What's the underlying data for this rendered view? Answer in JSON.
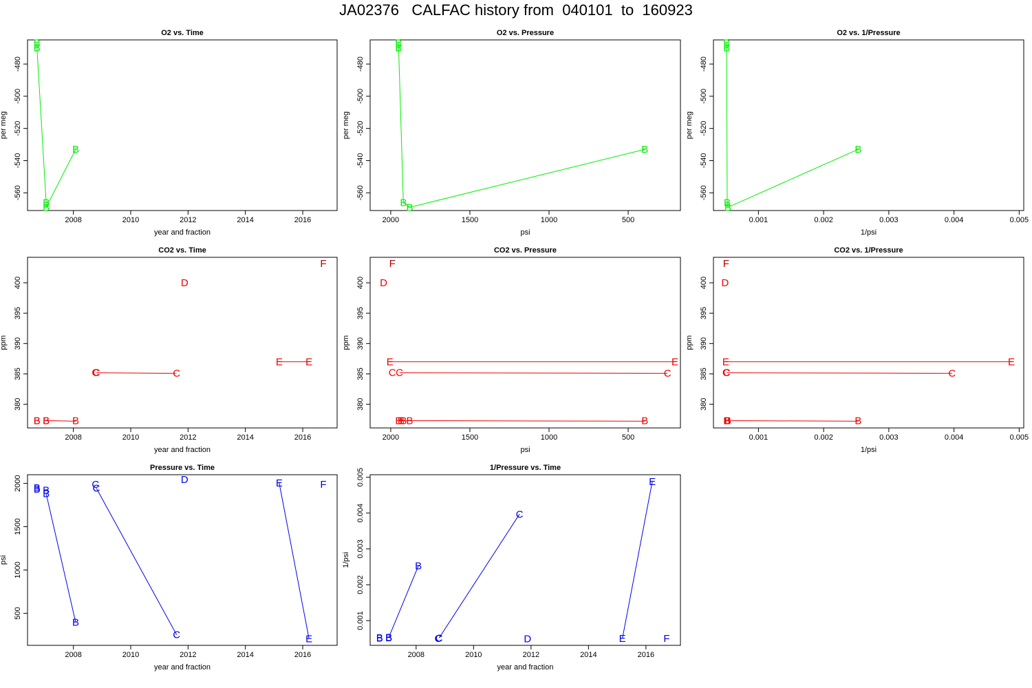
{
  "title": "JA02376   CALFAC history from  040101  to  160923",
  "colors": {
    "o2": "#00ee00",
    "co2": "#ee0000",
    "co2_dark": "#b00000",
    "pressure": "#0000ee"
  },
  "chart_data": [
    {
      "type": "line",
      "title": "O2 vs. Time",
      "xlabel": "year and fraction",
      "ylabel": "per meg",
      "color": "o2",
      "xlim": [
        2006.4,
        2017.2
      ],
      "ylim": [
        -571,
        -465
      ],
      "xticks": [
        2008,
        2010,
        2012,
        2014,
        2016
      ],
      "xtick_labels": [
        "2008",
        "2010",
        "2012",
        "2014",
        "2016"
      ],
      "yticks": [
        -560,
        -540,
        -520,
        -500,
        -480
      ],
      "ytick_labels": [
        "-560",
        "-540",
        "-520",
        "-500",
        "-480"
      ],
      "points": [
        {
          "x": 2006.73,
          "y": -467,
          "label": "B"
        },
        {
          "x": 2006.73,
          "y": -470,
          "label": "B"
        },
        {
          "x": 2007.05,
          "y": -566,
          "label": "B"
        },
        {
          "x": 2007.05,
          "y": -569,
          "label": "B"
        },
        {
          "x": 2008.08,
          "y": -533,
          "label": "B"
        }
      ],
      "lines": [
        [
          [
            2006.73,
            -467
          ],
          [
            2006.73,
            -470
          ],
          [
            2007.05,
            -566
          ],
          [
            2007.05,
            -569
          ],
          [
            2008.08,
            -533
          ]
        ]
      ]
    },
    {
      "type": "line",
      "title": "O2 vs. Pressure",
      "xlabel": "psi",
      "ylabel": "per meg",
      "color": "o2",
      "xlim": [
        2130,
        170
      ],
      "ylim": [
        -571,
        -465
      ],
      "xticks": [
        2000,
        1500,
        1000,
        500
      ],
      "xtick_labels": [
        "2000",
        "1500",
        "1000",
        "500"
      ],
      "yticks": [
        -560,
        -540,
        -520,
        -500,
        -480
      ],
      "ytick_labels": [
        "-560",
        "-540",
        "-520",
        "-500",
        "-480"
      ],
      "points": [
        {
          "x": 1950,
          "y": -467,
          "label": "B"
        },
        {
          "x": 1950,
          "y": -470,
          "label": "B"
        },
        {
          "x": 1920,
          "y": -566,
          "label": "B"
        },
        {
          "x": 1880,
          "y": -569,
          "label": "B"
        },
        {
          "x": 395,
          "y": -533,
          "label": "B"
        }
      ],
      "lines": [
        [
          [
            1950,
            -467
          ],
          [
            1950,
            -470
          ],
          [
            1920,
            -566
          ],
          [
            1880,
            -569
          ],
          [
            395,
            -533
          ]
        ]
      ]
    },
    {
      "type": "line",
      "title": "O2 vs. 1/Pressure",
      "xlabel": "1/psi",
      "ylabel": "per meg",
      "color": "o2",
      "xlim": [
        0.00031,
        0.00507
      ],
      "ylim": [
        -571,
        -465
      ],
      "xticks": [
        0.001,
        0.002,
        0.003,
        0.004,
        0.005
      ],
      "xtick_labels": [
        "0.001",
        "0.002",
        "0.003",
        "0.004",
        "0.005"
      ],
      "yticks": [
        -560,
        -540,
        -520,
        -500,
        -480
      ],
      "ytick_labels": [
        "-560",
        "-540",
        "-520",
        "-500",
        "-480"
      ],
      "points": [
        {
          "x": 0.000513,
          "y": -467,
          "label": "B"
        },
        {
          "x": 0.000513,
          "y": -470,
          "label": "B"
        },
        {
          "x": 0.000521,
          "y": -566,
          "label": "B"
        },
        {
          "x": 0.000532,
          "y": -569,
          "label": "B"
        },
        {
          "x": 0.00253,
          "y": -533,
          "label": "B"
        }
      ],
      "lines": [
        [
          [
            0.000513,
            -467
          ],
          [
            0.000513,
            -470
          ],
          [
            0.000521,
            -566
          ],
          [
            0.000532,
            -569
          ],
          [
            0.00253,
            -533
          ]
        ]
      ]
    },
    {
      "type": "line",
      "title": "CO2 vs. Time",
      "xlabel": "year and fraction",
      "ylabel": "ppm",
      "color": "co2",
      "xlim": [
        2006.4,
        2017.2
      ],
      "ylim": [
        376.1,
        404.2
      ],
      "xticks": [
        2008,
        2010,
        2012,
        2014,
        2016
      ],
      "xtick_labels": [
        "2008",
        "2010",
        "2012",
        "2014",
        "2016"
      ],
      "yticks": [
        380,
        385,
        390,
        395,
        400
      ],
      "ytick_labels": [
        "380",
        "385",
        "390",
        "395",
        "400"
      ],
      "points": [
        {
          "x": 2006.73,
          "y": 377.3,
          "label": "B"
        },
        {
          "x": 2006.73,
          "y": 377.3,
          "label": "B"
        },
        {
          "x": 2007.05,
          "y": 377.3,
          "label": "B"
        },
        {
          "x": 2007.05,
          "y": 377.3,
          "label": "B"
        },
        {
          "x": 2008.08,
          "y": 377.3,
          "label": "B"
        },
        {
          "x": 2008.77,
          "y": 385.2,
          "label": "C"
        },
        {
          "x": 2008.8,
          "y": 385.2,
          "label": "C"
        },
        {
          "x": 2011.6,
          "y": 385.1,
          "label": "C"
        },
        {
          "x": 2011.88,
          "y": 400.0,
          "label": "D"
        },
        {
          "x": 2015.18,
          "y": 387.0,
          "label": "E"
        },
        {
          "x": 2016.22,
          "y": 387.0,
          "label": "E"
        },
        {
          "x": 2016.72,
          "y": 403.2,
          "label": "F",
          "dark": true
        }
      ],
      "lines": [
        [
          [
            2007.05,
            377.3
          ],
          [
            2008.08,
            377.2
          ]
        ],
        [
          [
            2008.8,
            385.2
          ],
          [
            2011.6,
            385.1
          ]
        ],
        [
          [
            2015.18,
            387.0
          ],
          [
            2016.22,
            387.0
          ]
        ]
      ]
    },
    {
      "type": "line",
      "title": "CO2 vs. Pressure",
      "xlabel": "psi",
      "ylabel": "ppm",
      "color": "co2",
      "xlim": [
        2130,
        170
      ],
      "ylim": [
        376.1,
        404.2
      ],
      "xticks": [
        2000,
        1500,
        1000,
        500
      ],
      "xtick_labels": [
        "2000",
        "1500",
        "1000",
        "500"
      ],
      "yticks": [
        380,
        385,
        390,
        395,
        400
      ],
      "ytick_labels": [
        "380",
        "385",
        "390",
        "395",
        "400"
      ],
      "points": [
        {
          "x": 1950,
          "y": 377.3,
          "label": "B"
        },
        {
          "x": 1935,
          "y": 377.3,
          "label": "B"
        },
        {
          "x": 1920,
          "y": 377.3,
          "label": "B"
        },
        {
          "x": 1880,
          "y": 377.3,
          "label": "B"
        },
        {
          "x": 395,
          "y": 377.3,
          "label": "B"
        },
        {
          "x": 1990,
          "y": 385.2,
          "label": "C"
        },
        {
          "x": 1945,
          "y": 385.2,
          "label": "C"
        },
        {
          "x": 252,
          "y": 385.1,
          "label": "C"
        },
        {
          "x": 2045,
          "y": 400.0,
          "label": "D"
        },
        {
          "x": 2005,
          "y": 387.0,
          "label": "E"
        },
        {
          "x": 205,
          "y": 387.0,
          "label": "E"
        },
        {
          "x": 1990,
          "y": 403.2,
          "label": "F",
          "dark": true
        }
      ],
      "lines": [
        [
          [
            1950,
            377.3
          ],
          [
            395,
            377.2
          ]
        ],
        [
          [
            1945,
            385.2
          ],
          [
            252,
            385.1
          ]
        ],
        [
          [
            2005,
            387.0
          ],
          [
            205,
            387.0
          ]
        ]
      ]
    },
    {
      "type": "line",
      "title": "CO2 vs. 1/Pressure",
      "xlabel": "1/psi",
      "ylabel": "ppm",
      "color": "co2",
      "xlim": [
        0.00031,
        0.00507
      ],
      "ylim": [
        376.1,
        404.2
      ],
      "xticks": [
        0.001,
        0.002,
        0.003,
        0.004,
        0.005
      ],
      "xtick_labels": [
        "0.001",
        "0.002",
        "0.003",
        "0.004",
        "0.005"
      ],
      "yticks": [
        380,
        385,
        390,
        395,
        400
      ],
      "ytick_labels": [
        "380",
        "385",
        "390",
        "395",
        "400"
      ],
      "points": [
        {
          "x": 0.000513,
          "y": 377.3,
          "label": "B"
        },
        {
          "x": 0.000517,
          "y": 377.3,
          "label": "B"
        },
        {
          "x": 0.000521,
          "y": 377.3,
          "label": "B"
        },
        {
          "x": 0.000532,
          "y": 377.3,
          "label": "B"
        },
        {
          "x": 0.00253,
          "y": 377.3,
          "label": "B"
        },
        {
          "x": 0.000503,
          "y": 385.2,
          "label": "C"
        },
        {
          "x": 0.000514,
          "y": 385.2,
          "label": "C"
        },
        {
          "x": 0.00397,
          "y": 385.1,
          "label": "C"
        },
        {
          "x": 0.000489,
          "y": 400.0,
          "label": "D"
        },
        {
          "x": 0.000499,
          "y": 387.0,
          "label": "E"
        },
        {
          "x": 0.00488,
          "y": 387.0,
          "label": "E"
        },
        {
          "x": 0.000503,
          "y": 403.2,
          "label": "F",
          "dark": true
        }
      ],
      "lines": [
        [
          [
            0.000513,
            377.3
          ],
          [
            0.00253,
            377.2
          ]
        ],
        [
          [
            0.000514,
            385.2
          ],
          [
            0.00397,
            385.1
          ]
        ],
        [
          [
            0.000499,
            387.0
          ],
          [
            0.00488,
            387.0
          ]
        ]
      ]
    },
    {
      "type": "line",
      "title": "Pressure vs. Time",
      "xlabel": "year and fraction",
      "ylabel": "psi",
      "color": "pressure",
      "xlim": [
        2006.4,
        2017.2
      ],
      "ylim": [
        130,
        2100
      ],
      "xticks": [
        2008,
        2010,
        2012,
        2014,
        2016
      ],
      "xtick_labels": [
        "2008",
        "2010",
        "2012",
        "2014",
        "2016"
      ],
      "yticks": [
        500,
        1000,
        1500,
        2000
      ],
      "ytick_labels": [
        "500",
        "1000",
        "1500",
        "2000"
      ],
      "points": [
        {
          "x": 2006.73,
          "y": 1950,
          "label": "B"
        },
        {
          "x": 2006.73,
          "y": 1935,
          "label": "B"
        },
        {
          "x": 2007.05,
          "y": 1920,
          "label": "B"
        },
        {
          "x": 2007.05,
          "y": 1880,
          "label": "B"
        },
        {
          "x": 2008.08,
          "y": 395,
          "label": "B"
        },
        {
          "x": 2008.77,
          "y": 1990,
          "label": "C"
        },
        {
          "x": 2008.8,
          "y": 1945,
          "label": "C"
        },
        {
          "x": 2011.6,
          "y": 252,
          "label": "C"
        },
        {
          "x": 2011.88,
          "y": 2045,
          "label": "D"
        },
        {
          "x": 2015.18,
          "y": 2005,
          "label": "E"
        },
        {
          "x": 2016.22,
          "y": 205,
          "label": "E"
        },
        {
          "x": 2016.72,
          "y": 1990,
          "label": "F"
        }
      ],
      "lines": [
        [
          [
            2007.05,
            1880
          ],
          [
            2008.08,
            395
          ]
        ],
        [
          [
            2008.8,
            1945
          ],
          [
            2011.6,
            252
          ]
        ],
        [
          [
            2015.18,
            2005
          ],
          [
            2016.22,
            205
          ]
        ]
      ]
    },
    {
      "type": "line",
      "title": "1/Pressure vs. Time",
      "xlabel": "year and fraction",
      "ylabel": "1/psi",
      "color": "pressure",
      "xlim": [
        2006.4,
        2017.2
      ],
      "ylim": [
        0.00031,
        0.00507
      ],
      "xticks": [
        2008,
        2010,
        2012,
        2014,
        2016
      ],
      "xtick_labels": [
        "2008",
        "2010",
        "2012",
        "2014",
        "2016"
      ],
      "yticks": [
        0.001,
        0.002,
        0.003,
        0.004,
        0.005
      ],
      "ytick_labels": [
        "0.001",
        "0.002",
        "0.003",
        "0.004",
        "0.005"
      ],
      "points": [
        {
          "x": 2006.73,
          "y": 0.000513,
          "label": "B"
        },
        {
          "x": 2006.73,
          "y": 0.000517,
          "label": "B"
        },
        {
          "x": 2007.05,
          "y": 0.000521,
          "label": "B"
        },
        {
          "x": 2007.05,
          "y": 0.000532,
          "label": "B"
        },
        {
          "x": 2008.08,
          "y": 0.00253,
          "label": "B"
        },
        {
          "x": 2008.77,
          "y": 0.000503,
          "label": "C"
        },
        {
          "x": 2008.8,
          "y": 0.000514,
          "label": "C"
        },
        {
          "x": 2011.6,
          "y": 0.00397,
          "label": "C"
        },
        {
          "x": 2011.88,
          "y": 0.000489,
          "label": "D"
        },
        {
          "x": 2015.18,
          "y": 0.000499,
          "label": "E"
        },
        {
          "x": 2016.22,
          "y": 0.00488,
          "label": "E"
        },
        {
          "x": 2016.72,
          "y": 0.000503,
          "label": "F"
        }
      ],
      "lines": [
        [
          [
            2007.05,
            0.000532
          ],
          [
            2008.08,
            0.00253
          ]
        ],
        [
          [
            2008.8,
            0.000514
          ],
          [
            2011.6,
            0.00397
          ]
        ],
        [
          [
            2015.18,
            0.000499
          ],
          [
            2016.22,
            0.00488
          ]
        ]
      ]
    }
  ]
}
